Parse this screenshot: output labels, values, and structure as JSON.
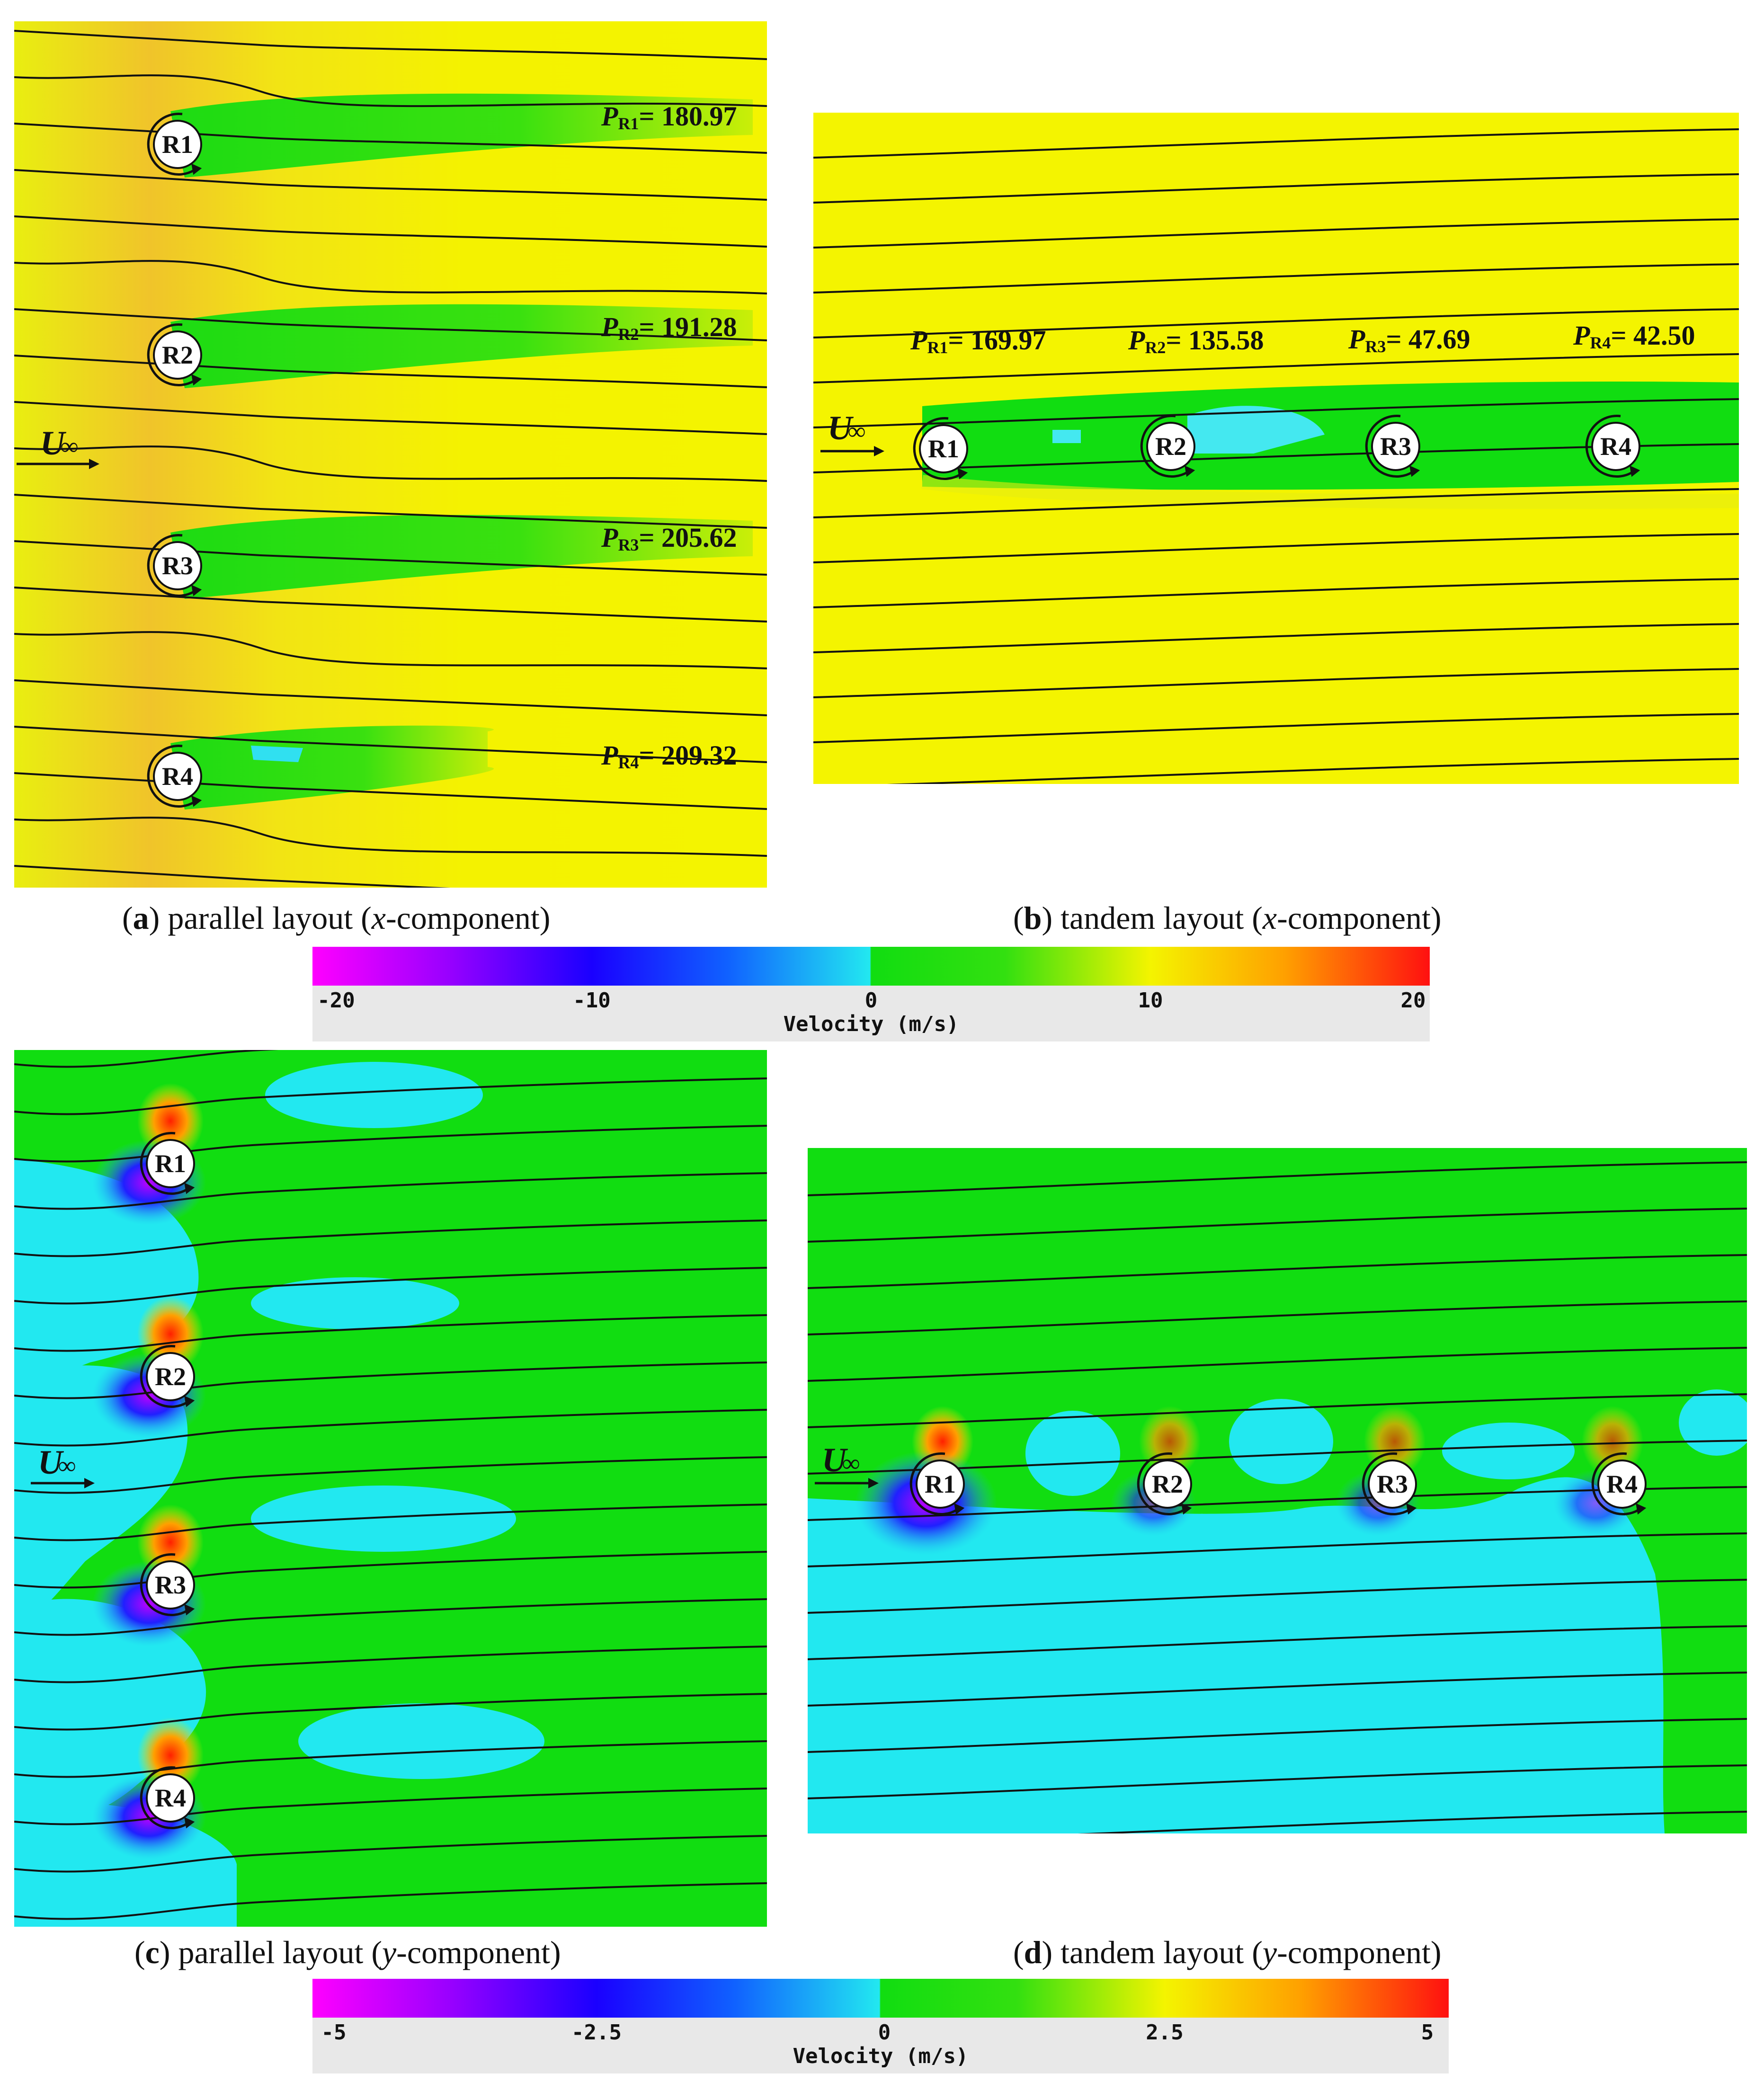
{
  "panels": {
    "a": {
      "letter": "a",
      "caption_text": "parallel layout (",
      "axis": "x",
      "caption_tail": "-component)"
    },
    "b": {
      "letter": "b",
      "caption_text": "tandem layout (",
      "axis": "x",
      "caption_tail": "-component)"
    },
    "c": {
      "letter": "c",
      "caption_text": "parallel layout (",
      "axis": "y",
      "caption_tail": "-component)"
    },
    "d": {
      "letter": "d",
      "caption_text": "tandem layout (",
      "axis": "y",
      "caption_tail": "-component)"
    }
  },
  "rotors": [
    "R1",
    "R2",
    "R3",
    "R4"
  ],
  "freestream_label": "U",
  "freestream_sub": "∞",
  "power_parallel": [
    {
      "sym": "P",
      "sub": "R1",
      "value": "= 180.97"
    },
    {
      "sym": "P",
      "sub": "R2",
      "value": "= 191.28"
    },
    {
      "sym": "P",
      "sub": "R3",
      "value": "= 205.62"
    },
    {
      "sym": "P",
      "sub": "R4",
      "value": "= 209.32"
    }
  ],
  "power_tandem": [
    {
      "sym": "P",
      "sub": "R1",
      "value": "= 169.97"
    },
    {
      "sym": "P",
      "sub": "R2",
      "value": "= 135.58"
    },
    {
      "sym": "P",
      "sub": "R3",
      "value": "= 47.69"
    },
    {
      "sym": "P",
      "sub": "R4",
      "value": "= 42.50"
    }
  ],
  "colorbar_x": {
    "title": "Velocity (m/s)",
    "ticks": [
      "-20",
      "-10",
      "0",
      "10",
      "20"
    ],
    "tick_values": [
      -20,
      -10,
      0,
      10,
      20
    ],
    "range": [
      -20,
      20
    ]
  },
  "colorbar_y": {
    "title": "Velocity (m/s)",
    "ticks": [
      "-5",
      "-2.5",
      "0",
      "2.5",
      "5"
    ],
    "tick_values": [
      -5,
      -2.5,
      0,
      2.5,
      5
    ],
    "range": [
      -5,
      5
    ]
  },
  "colors": {
    "yellow_field": "#f2f200",
    "orange": "#f0b020",
    "green_wake": "#11dd11",
    "cyan": "#22e8f0",
    "streamline": "#111111"
  }
}
